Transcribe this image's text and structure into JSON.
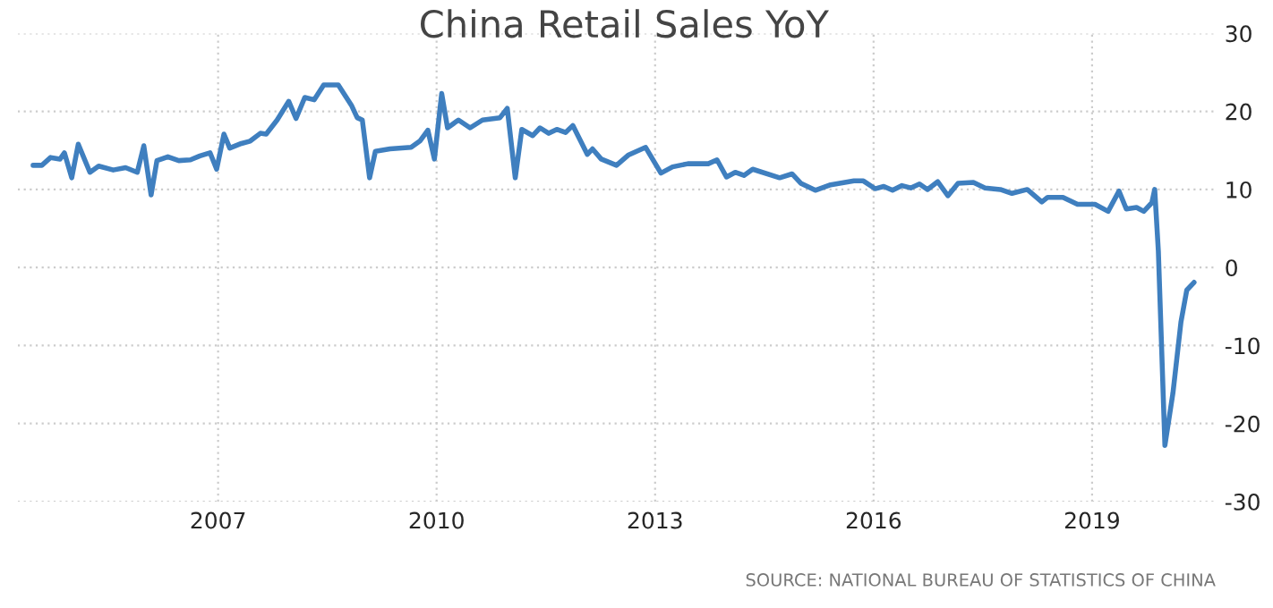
{
  "chart_data": {
    "type": "line",
    "title": "China Retail Sales YoY",
    "annotations": [
      "SOURCE: NATIONAL BUREAU OF STATISTICS OF CHINA"
    ],
    "series": [
      {
        "color": "#3f7fbf",
        "x": [
          2004.46,
          2004.58,
          2004.7,
          2004.83,
          2004.89,
          2004.99,
          2005.08,
          2005.24,
          2005.36,
          2005.56,
          2005.73,
          2005.89,
          2005.98,
          2006.08,
          2006.16,
          2006.31,
          2006.46,
          2006.62,
          2006.75,
          2006.89,
          2006.98,
          2007.08,
          2007.16,
          2007.32,
          2007.44,
          2007.58,
          2007.66,
          2007.81,
          2007.97,
          2008.07,
          2008.19,
          2008.32,
          2008.45,
          2008.65,
          2008.83,
          2008.91,
          2008.98,
          2009.08,
          2009.16,
          2009.36,
          2009.65,
          2009.77,
          2009.88,
          2009.97,
          2010.07,
          2010.15,
          2010.3,
          2010.46,
          2010.63,
          2010.87,
          2010.97,
          2011.08,
          2011.17,
          2011.32,
          2011.42,
          2011.54,
          2011.65,
          2011.77,
          2011.87,
          2012.07,
          2012.14,
          2012.26,
          2012.47,
          2012.63,
          2012.87,
          2013.08,
          2013.24,
          2013.45,
          2013.73,
          2013.85,
          2013.98,
          2014.1,
          2014.22,
          2014.34,
          2014.71,
          2014.88,
          2015.0,
          2015.2,
          2015.41,
          2015.73,
          2015.86,
          2016.02,
          2016.14,
          2016.26,
          2016.39,
          2016.51,
          2016.63,
          2016.74,
          2016.88,
          2017.02,
          2017.16,
          2017.37,
          2017.53,
          2017.74,
          2017.9,
          2018.11,
          2018.31,
          2018.39,
          2018.6,
          2018.8,
          2019.04,
          2019.22,
          2019.37,
          2019.47,
          2019.61,
          2019.71,
          2019.82,
          2019.86,
          2019.91,
          2020.0,
          2020.11,
          2020.22,
          2020.3,
          2020.4
        ],
        "values": [
          13.1,
          13.1,
          14.1,
          13.9,
          14.7,
          11.5,
          15.8,
          12.2,
          13.0,
          12.5,
          12.8,
          12.2,
          15.6,
          9.3,
          13.7,
          14.2,
          13.7,
          13.8,
          14.3,
          14.7,
          12.6,
          17.1,
          15.3,
          15.9,
          16.2,
          17.2,
          17.1,
          18.9,
          21.3,
          19.1,
          21.8,
          21.5,
          23.4,
          23.4,
          20.8,
          19.2,
          18.9,
          11.5,
          14.9,
          15.2,
          15.4,
          16.2,
          17.6,
          13.9,
          22.3,
          17.9,
          18.9,
          17.9,
          18.9,
          19.2,
          20.4,
          11.5,
          17.7,
          16.9,
          17.9,
          17.2,
          17.7,
          17.3,
          18.2,
          14.5,
          15.2,
          13.9,
          13.1,
          14.4,
          15.4,
          12.1,
          12.9,
          13.3,
          13.3,
          13.8,
          11.6,
          12.2,
          11.8,
          12.6,
          11.5,
          12.0,
          10.8,
          9.9,
          10.6,
          11.1,
          11.1,
          10.1,
          10.4,
          9.9,
          10.5,
          10.2,
          10.7,
          10.0,
          11.0,
          9.2,
          10.8,
          10.9,
          10.2,
          10.0,
          9.5,
          10.0,
          8.4,
          9.0,
          9.0,
          8.1,
          8.1,
          7.2,
          9.8,
          7.5,
          7.7,
          7.2,
          8.3,
          10.0,
          2.1,
          -22.8,
          -16.1,
          -7.0,
          -2.9,
          -1.9
        ]
      }
    ],
    "xlim": [
      2004.25,
      2020.68
    ],
    "xticks": [
      2007,
      2010,
      2013,
      2016,
      2019
    ],
    "ylim": [
      -30,
      30
    ],
    "yticks": [
      -30,
      -20,
      -10,
      0,
      10,
      20,
      30
    ],
    "grid": true,
    "legend": false,
    "marker": "none",
    "line_style": "solid"
  }
}
